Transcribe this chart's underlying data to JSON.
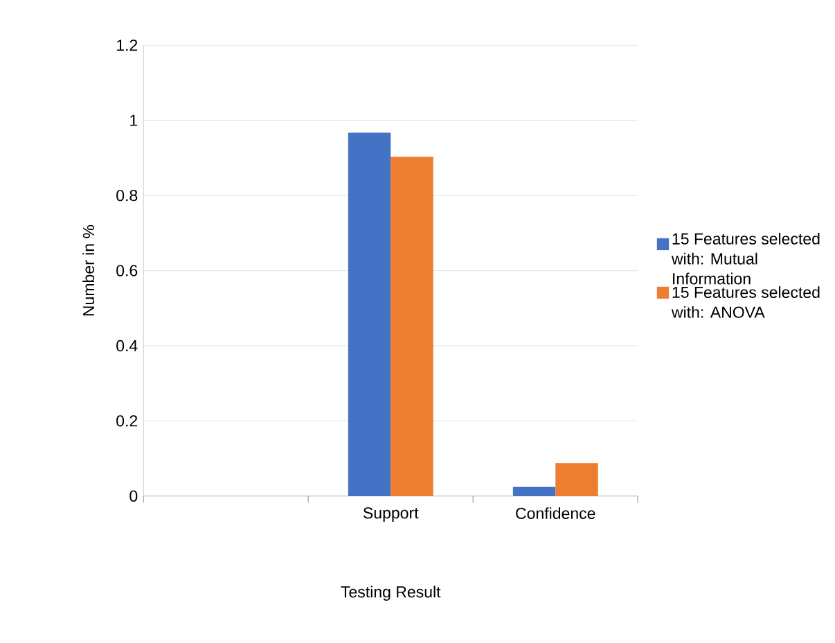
{
  "chart_data": {
    "type": "bar",
    "xlabel": "Testing Result",
    "ylabel": "Number in %",
    "categories": [
      null,
      "Support",
      "Confidence"
    ],
    "series": [
      {
        "name": "15 Features selected with:  Mutual Information",
        "color": "#4472c4",
        "values": [
          null,
          0.967,
          0.024
        ]
      },
      {
        "name": "15 Features selected with:  ANOVA",
        "color": "#ed7d31",
        "values": [
          null,
          0.903,
          0.088
        ]
      }
    ],
    "ylim": [
      0,
      1.2
    ],
    "yticks": [
      0,
      0.2,
      0.4,
      0.6,
      0.8,
      1,
      1.2
    ],
    "grid": "y",
    "legend": "right"
  }
}
